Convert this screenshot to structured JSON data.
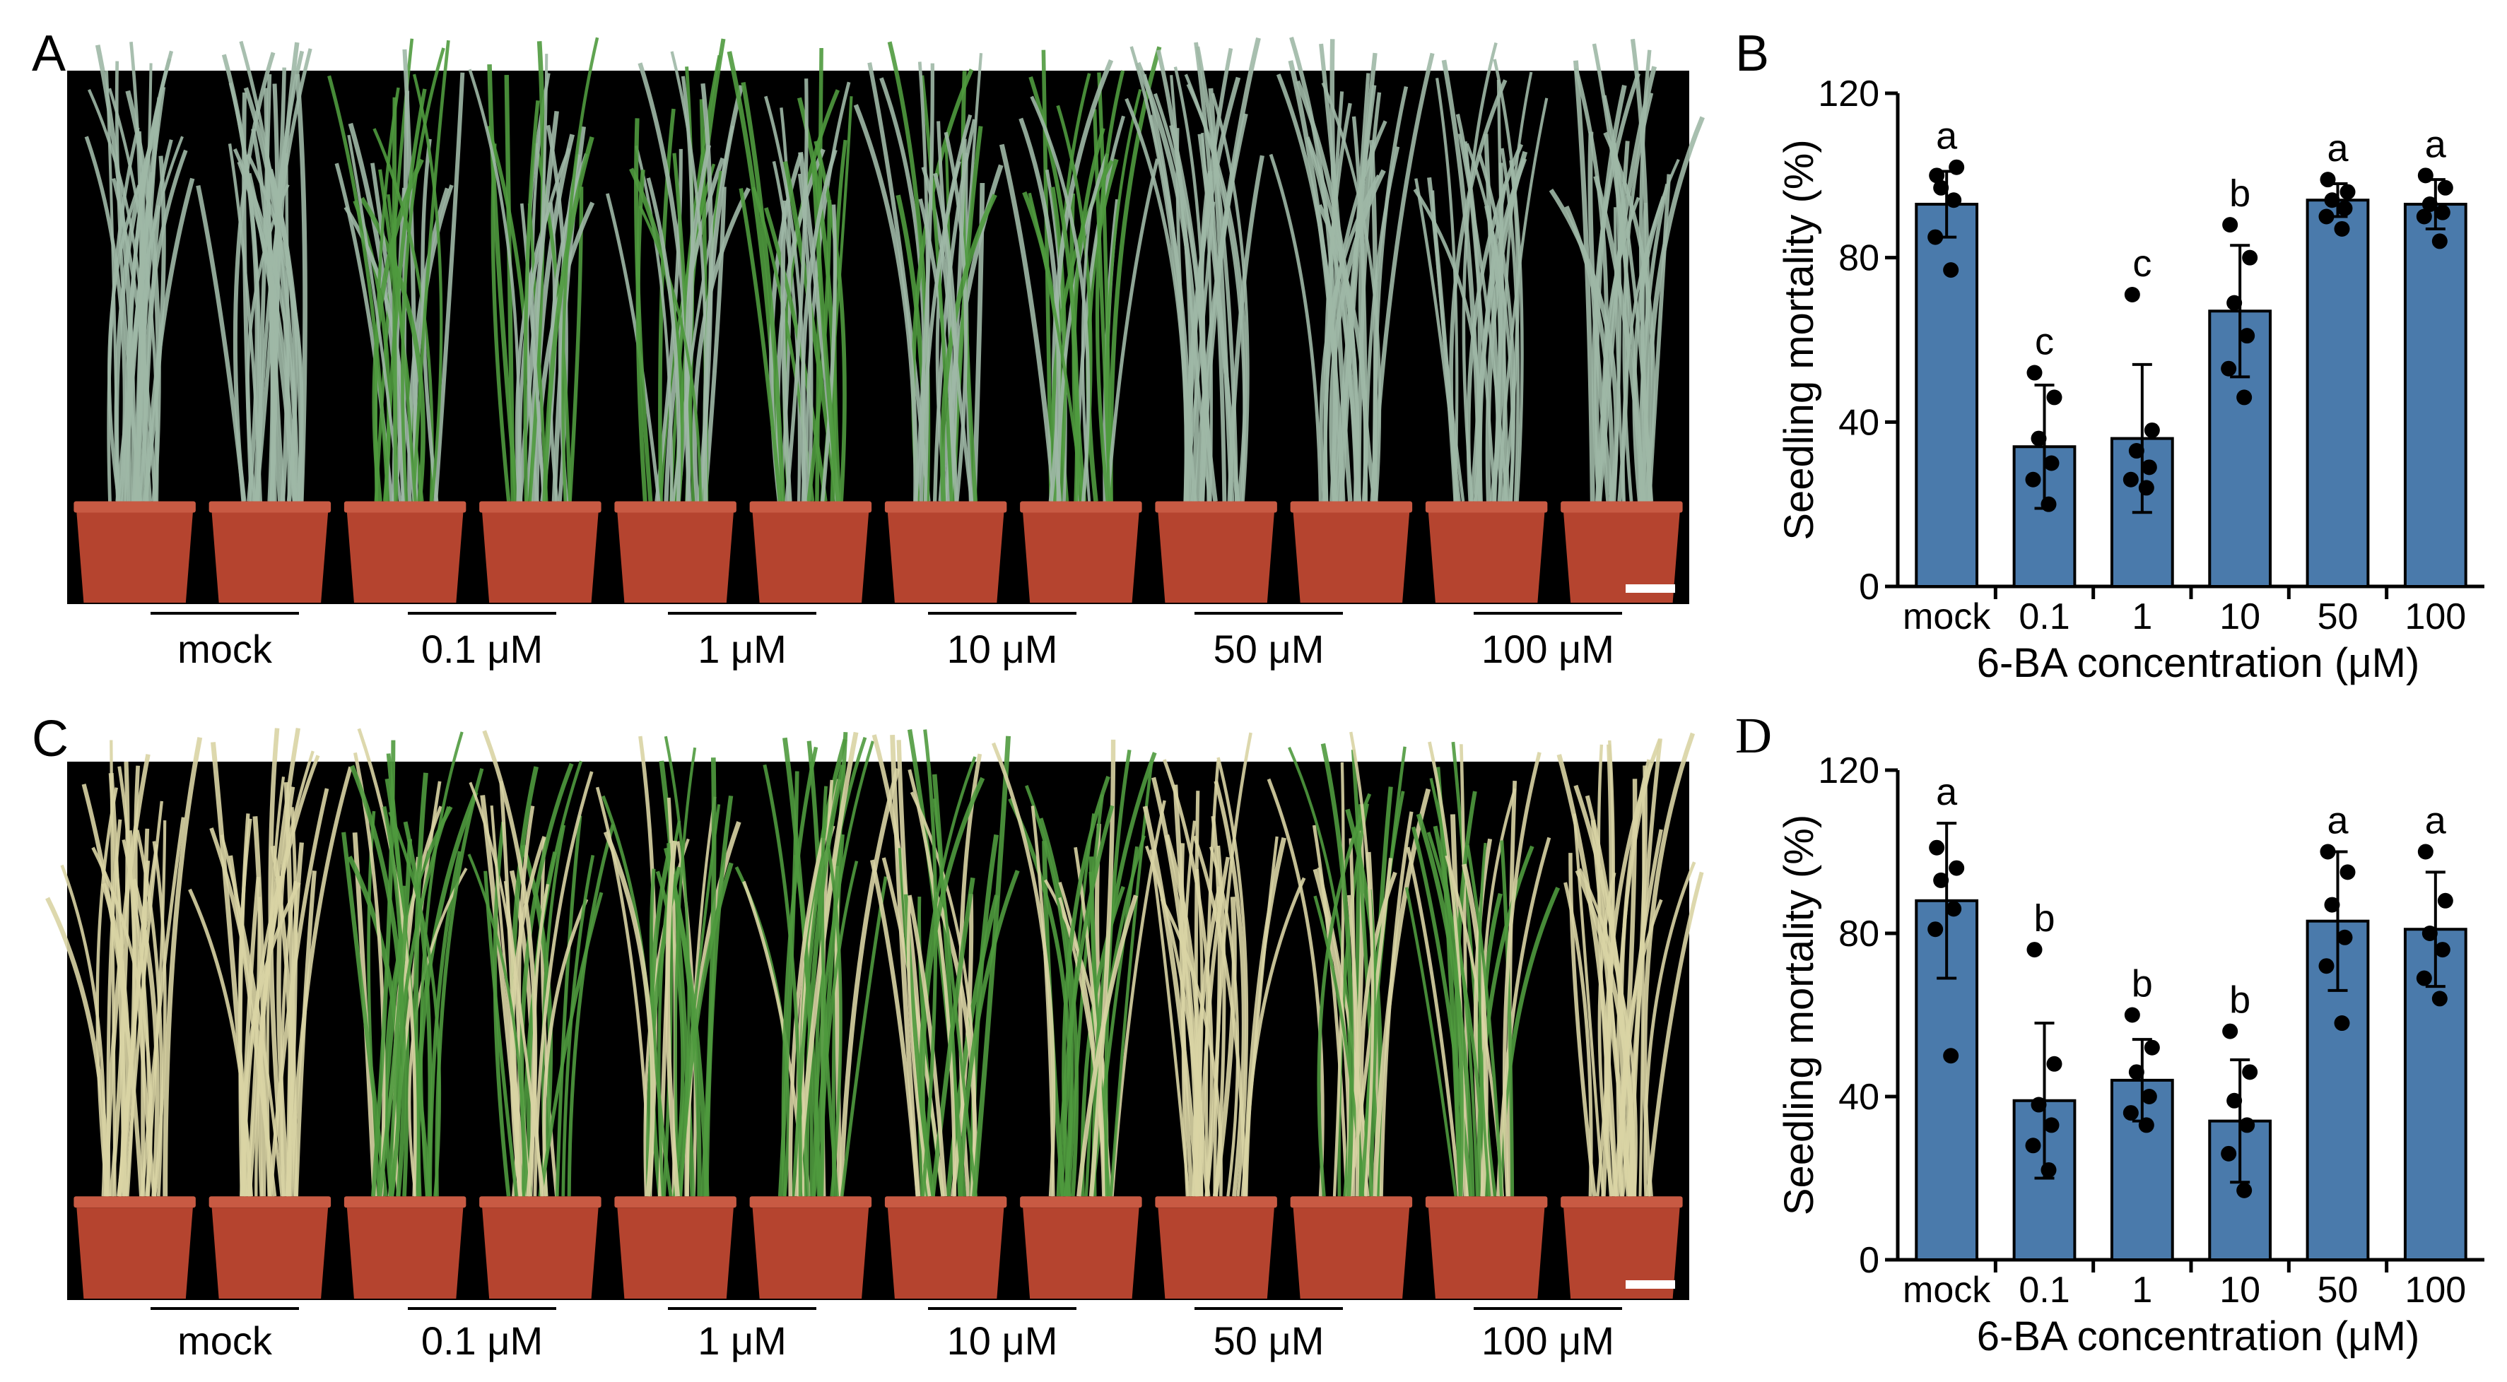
{
  "figure": {
    "panel_a": {
      "letter": "A",
      "group_labels": [
        "mock",
        "0.1 μM",
        "1 μM",
        "10 μM",
        "50 μM",
        "100 μM"
      ],
      "foliage_color": "#9fb8a6",
      "foliage_green": "#4f9a3e"
    },
    "panel_c": {
      "letter": "C",
      "group_labels": [
        "mock",
        "0.1 μM",
        "1 μM",
        "10 μM",
        "50 μM",
        "100 μM"
      ],
      "foliage_color": "#d9d4a4",
      "foliage_green": "#4f9a3e"
    },
    "pot_color": "#b5442f",
    "photo_background": "#000000",
    "bar_color": "#4a7aab"
  },
  "chart_data": [
    {
      "panel": "B",
      "type": "bar",
      "categories": [
        "mock",
        "0.1",
        "1",
        "10",
        "50",
        "100"
      ],
      "values": [
        93,
        34,
        36,
        67,
        94,
        93
      ],
      "error": [
        8,
        15,
        18,
        16,
        4,
        6
      ],
      "points": [
        [
          100,
          102,
          97,
          94,
          85,
          77
        ],
        [
          52,
          46,
          36,
          30,
          26,
          20
        ],
        [
          71,
          38,
          33,
          29,
          26,
          24
        ],
        [
          88,
          80,
          69,
          61,
          53,
          46
        ],
        [
          99,
          96,
          94,
          92,
          90,
          87
        ],
        [
          100,
          97,
          93,
          91,
          90,
          84
        ]
      ],
      "significance": [
        "a",
        "c",
        "c",
        "b",
        "a",
        "a"
      ],
      "xlabel": "6-BA concentration (μM)",
      "ylabel": "Seedling mortality (%)",
      "ylim": [
        0,
        120
      ],
      "yticks": [
        0,
        40,
        80,
        120
      ]
    },
    {
      "panel": "D",
      "type": "bar",
      "categories": [
        "mock",
        "0.1",
        "1",
        "10",
        "50",
        "100"
      ],
      "values": [
        88,
        39,
        44,
        34,
        83,
        81
      ],
      "error": [
        19,
        19,
        10,
        15,
        17,
        14
      ],
      "points": [
        [
          101,
          96,
          93,
          86,
          81,
          50
        ],
        [
          76,
          48,
          38,
          33,
          28,
          22
        ],
        [
          60,
          52,
          46,
          40,
          36,
          33
        ],
        [
          56,
          46,
          39,
          33,
          26,
          17
        ],
        [
          100,
          95,
          87,
          79,
          72,
          58
        ],
        [
          100,
          88,
          80,
          76,
          69,
          64
        ]
      ],
      "significance": [
        "a",
        "b",
        "b",
        "b",
        "a",
        "a"
      ],
      "xlabel": "6-BA concentration (μM)",
      "ylabel": "Seedling mortality (%)",
      "ylim": [
        0,
        120
      ],
      "yticks": [
        0,
        40,
        80,
        120
      ]
    }
  ]
}
